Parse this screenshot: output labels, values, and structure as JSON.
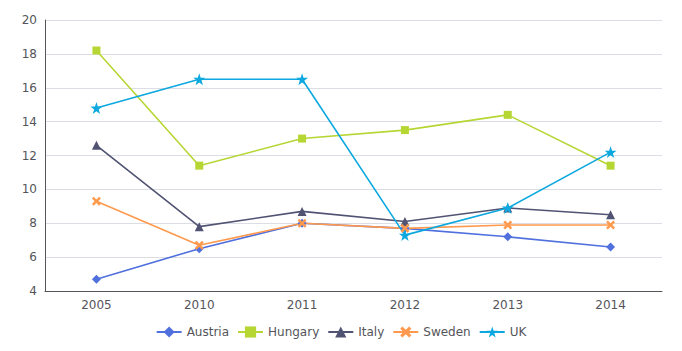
{
  "chart_data": {
    "type": "line",
    "categories": [
      "2005",
      "2010",
      "2011",
      "2012",
      "2013",
      "2014"
    ],
    "series": [
      {
        "name": "Austria",
        "marker": "diamond",
        "values": [
          4.7,
          6.5,
          8.0,
          7.7,
          7.2,
          6.6
        ]
      },
      {
        "name": "Hungary",
        "marker": "square",
        "values": [
          18.2,
          11.4,
          13.0,
          13.5,
          14.4,
          11.4
        ]
      },
      {
        "name": "Italy",
        "marker": "triangle",
        "values": [
          12.6,
          7.8,
          8.7,
          8.1,
          8.9,
          8.5
        ]
      },
      {
        "name": "Sweden",
        "marker": "cross",
        "values": [
          9.3,
          6.7,
          8.0,
          7.7,
          7.9,
          7.9
        ]
      },
      {
        "name": "UK",
        "marker": "star",
        "values": [
          14.8,
          16.5,
          16.5,
          7.3,
          8.9,
          12.2
        ]
      }
    ],
    "ylim": [
      4,
      20
    ],
    "yticks": [
      4,
      6,
      8,
      10,
      12,
      14,
      16,
      18,
      20
    ],
    "grid": true,
    "legend": "bottom"
  }
}
